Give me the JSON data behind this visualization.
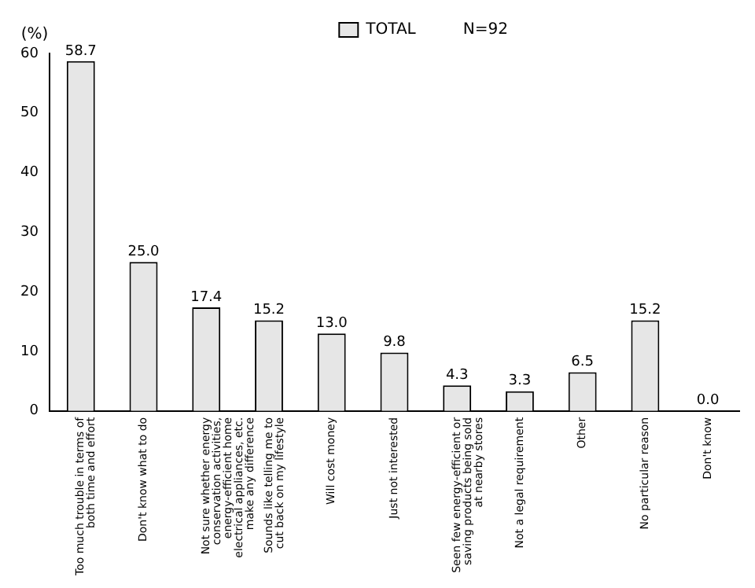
{
  "chart_data": {
    "type": "bar",
    "ylabel": "(%)",
    "categories": [
      "Too much trouble in terms of both time and effort",
      "Don't know what to do",
      "Not sure whether energy conservation activities, energy-efficient home electrical appliances, etc. make any difference",
      "Sounds like telling me to cut back on my lifestyle",
      "Will cost money",
      "Just not interested",
      "Seen few energy-efficient or saving products being sold at nearby stores",
      "Not a legal requirement",
      "Other",
      "No particular reason",
      "Don't know"
    ],
    "series": [
      {
        "name": "TOTAL",
        "color": "#e6e6e6",
        "values": [
          58.7,
          25.0,
          17.4,
          15.2,
          13.0,
          9.8,
          4.3,
          3.3,
          6.5,
          15.2,
          0.0
        ],
        "value_labels": [
          "58.7",
          "25.0",
          "17.4",
          "15.2",
          "13.0",
          "9.8",
          "4.3",
          "3.3",
          "6.5",
          "15.2",
          "0.0"
        ]
      }
    ],
    "annotations": [
      "N=92"
    ],
    "ylim": [
      0,
      60
    ],
    "yticks": [
      0,
      10,
      20,
      30,
      40,
      50,
      60
    ],
    "grid": false,
    "legend": "top"
  }
}
